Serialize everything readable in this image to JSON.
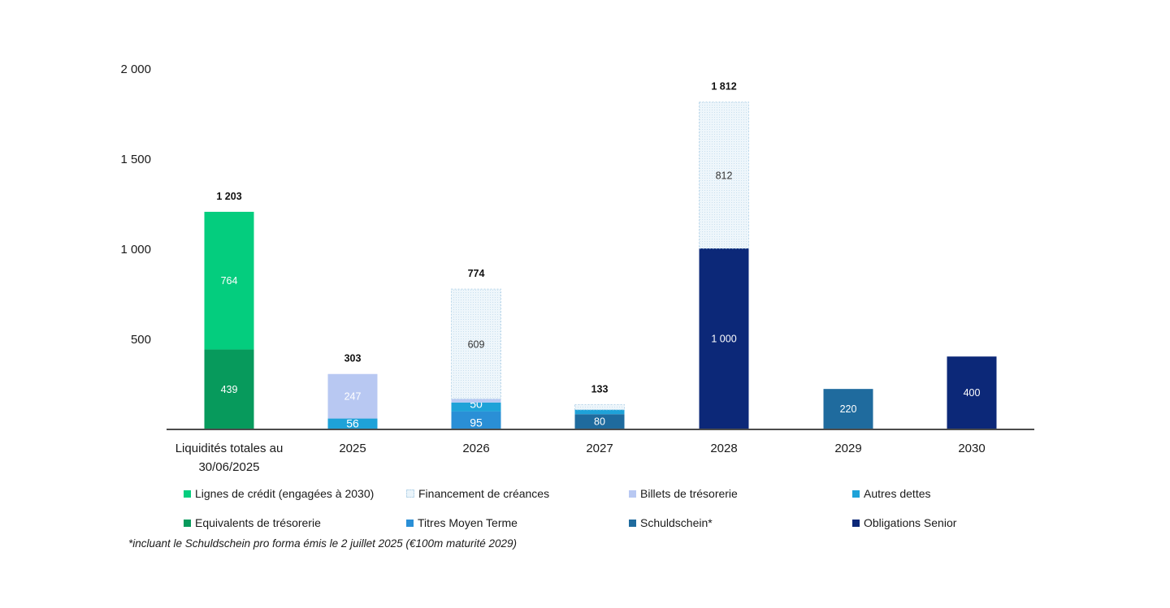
{
  "chart_data": {
    "type": "bar",
    "stacked": true,
    "title": "",
    "xlabel": "",
    "ylabel": "",
    "ylim": [
      0,
      2000
    ],
    "yticks": [
      500,
      1000,
      1500,
      2000
    ],
    "ytick_labels": [
      "500",
      "1 000",
      "1 500",
      "2 000"
    ],
    "grid": false,
    "legend_position": "bottom",
    "categories": [
      "Liquidités totales au 30/06/2025",
      "2025",
      "2026",
      "2027",
      "2028",
      "2029",
      "2030"
    ],
    "category_lines": [
      [
        "Liquidités totales au",
        "30/06/2025"
      ],
      [
        "2025"
      ],
      [
        "2026"
      ],
      [
        "2027"
      ],
      [
        "2028"
      ],
      [
        "2029"
      ],
      [
        "2030"
      ]
    ],
    "totals": [
      1203,
      303,
      774,
      133,
      1812,
      null,
      null
    ],
    "total_labels": [
      "1 203",
      "303",
      "774",
      "133",
      "1 812",
      "",
      ""
    ],
    "series": [
      {
        "name": "Equivalents de trésorerie",
        "color": "#079a5c",
        "label_color": "#ffffff",
        "values": [
          439,
          0,
          0,
          0,
          0,
          0,
          0
        ],
        "labels": [
          "439",
          "",
          "",
          "",
          "",
          "",
          ""
        ]
      },
      {
        "name": "Lignes de crédit (engagées à 2030)",
        "color": "#04cd7e",
        "label_color": "#ffffff",
        "values": [
          764,
          0,
          0,
          0,
          0,
          0,
          0
        ],
        "labels": [
          "764",
          "",
          "",
          "",
          "",
          "",
          ""
        ]
      },
      {
        "name": "Titres Moyen Terme",
        "color": "#2a8fd6",
        "label_color": "#ffffff",
        "values": [
          0,
          0,
          95,
          0,
          0,
          0,
          0
        ],
        "labels": [
          "",
          "",
          "95",
          "",
          "",
          "",
          ""
        ]
      },
      {
        "name": "Schuldschein*",
        "color": "#1f6b9e",
        "label_color": "#ffffff",
        "values": [
          0,
          0,
          0,
          80,
          0,
          220,
          0
        ],
        "labels": [
          "",
          "",
          "",
          "80",
          "",
          "220",
          ""
        ]
      },
      {
        "name": "Obligations Senior",
        "color": "#0c2878",
        "label_color": "#ffffff",
        "values": [
          0,
          0,
          0,
          0,
          1000,
          0,
          400
        ],
        "labels": [
          "",
          "",
          "",
          "",
          "1 000",
          "",
          "400"
        ]
      },
      {
        "name": "Autres dettes",
        "color": "#1ea2d8",
        "label_color": "#ffffff",
        "values": [
          0,
          56,
          50,
          25,
          0,
          0,
          0
        ],
        "labels": [
          "",
          "56",
          "50",
          "",
          "",
          "",
          ""
        ]
      },
      {
        "name": "Billets de trésorerie",
        "color": "#b8c8f2",
        "label_color": "#ffffff",
        "values": [
          0,
          247,
          20,
          0,
          0,
          0,
          0
        ],
        "labels": [
          "",
          "247",
          "",
          "",
          "",
          "",
          ""
        ]
      },
      {
        "name": "Financement de créances",
        "color": "#eaf4fa",
        "label_color": "#333333",
        "hatched": true,
        "values": [
          0,
          0,
          609,
          28,
          812,
          0,
          0
        ],
        "labels": [
          "",
          "",
          "609",
          "",
          "812",
          "",
          ""
        ]
      }
    ],
    "legend": [
      {
        "name": "Lignes de crédit (engagées à 2030)",
        "color": "#04cd7e"
      },
      {
        "name": "Financement de créances",
        "color": "#eaf4fa",
        "hatched": true
      },
      {
        "name": "Billets de trésorerie",
        "color": "#b8c8f2"
      },
      {
        "name": "Autres dettes",
        "color": "#1ea2d8"
      },
      {
        "name": "Equivalents de trésorerie",
        "color": "#079a5c"
      },
      {
        "name": "Titres Moyen Terme",
        "color": "#2a8fd6"
      },
      {
        "name": "Schuldschein*",
        "color": "#1f6b9e"
      },
      {
        "name": "Obligations Senior",
        "color": "#0c2878"
      }
    ],
    "footnote": "*incluant le Schuldschein pro forma émis le 2 juillet 2025 (€100m maturité 2029)"
  }
}
